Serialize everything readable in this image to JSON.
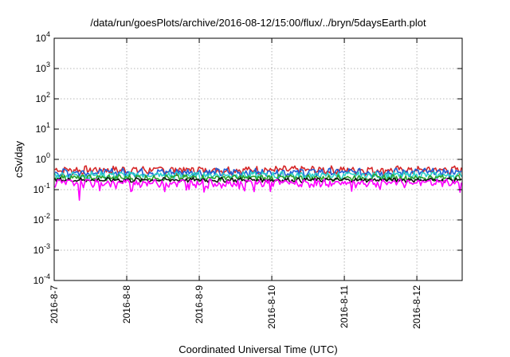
{
  "chart_data": {
    "type": "line",
    "title": "/data/run/goesPlots/archive/2016-08-12/15:00/flux/../bryn/5daysEarth.plot",
    "xlabel": "Coordinated Universal Time (UTC)",
    "ylabel": "cSv/day",
    "yscale": "log",
    "ylim": [
      0.0001,
      10000
    ],
    "yticks": [
      {
        "base": "10",
        "exp": "-4",
        "value": 0.0001
      },
      {
        "base": "10",
        "exp": "-3",
        "value": 0.001
      },
      {
        "base": "10",
        "exp": "-2",
        "value": 0.01
      },
      {
        "base": "10",
        "exp": "-1",
        "value": 0.1
      },
      {
        "base": "10",
        "exp": "0",
        "value": 1
      },
      {
        "base": "10",
        "exp": "1",
        "value": 10
      },
      {
        "base": "10",
        "exp": "2",
        "value": 100
      },
      {
        "base": "10",
        "exp": "3",
        "value": 1000
      },
      {
        "base": "10",
        "exp": "4",
        "value": 10000
      }
    ],
    "xlim": [
      "2016-08-07T00:00",
      "2016-08-12T15:00"
    ],
    "xticks": [
      "2016-8-7",
      "2016-8-8",
      "2016-8-9",
      "2016-8-10",
      "2016-8-11",
      "2016-8-12"
    ],
    "grid": true,
    "series": [
      {
        "color": "#d62728",
        "level": 0.45,
        "spread": 0.12,
        "dips": false
      },
      {
        "color": "#1f5fd6",
        "level": 0.38,
        "spread": 0.1,
        "dips": false
      },
      {
        "color": "#2bd1c9",
        "level": 0.3,
        "spread": 0.07,
        "dips": false
      },
      {
        "color": "#2ca02c",
        "level": 0.25,
        "spread": 0.05,
        "dips": false
      },
      {
        "color": "#111111",
        "level": 0.21,
        "spread": 0.03,
        "dips": false
      },
      {
        "color": "#ff00ff",
        "level": 0.17,
        "spread": 0.04,
        "dips": true
      }
    ]
  }
}
